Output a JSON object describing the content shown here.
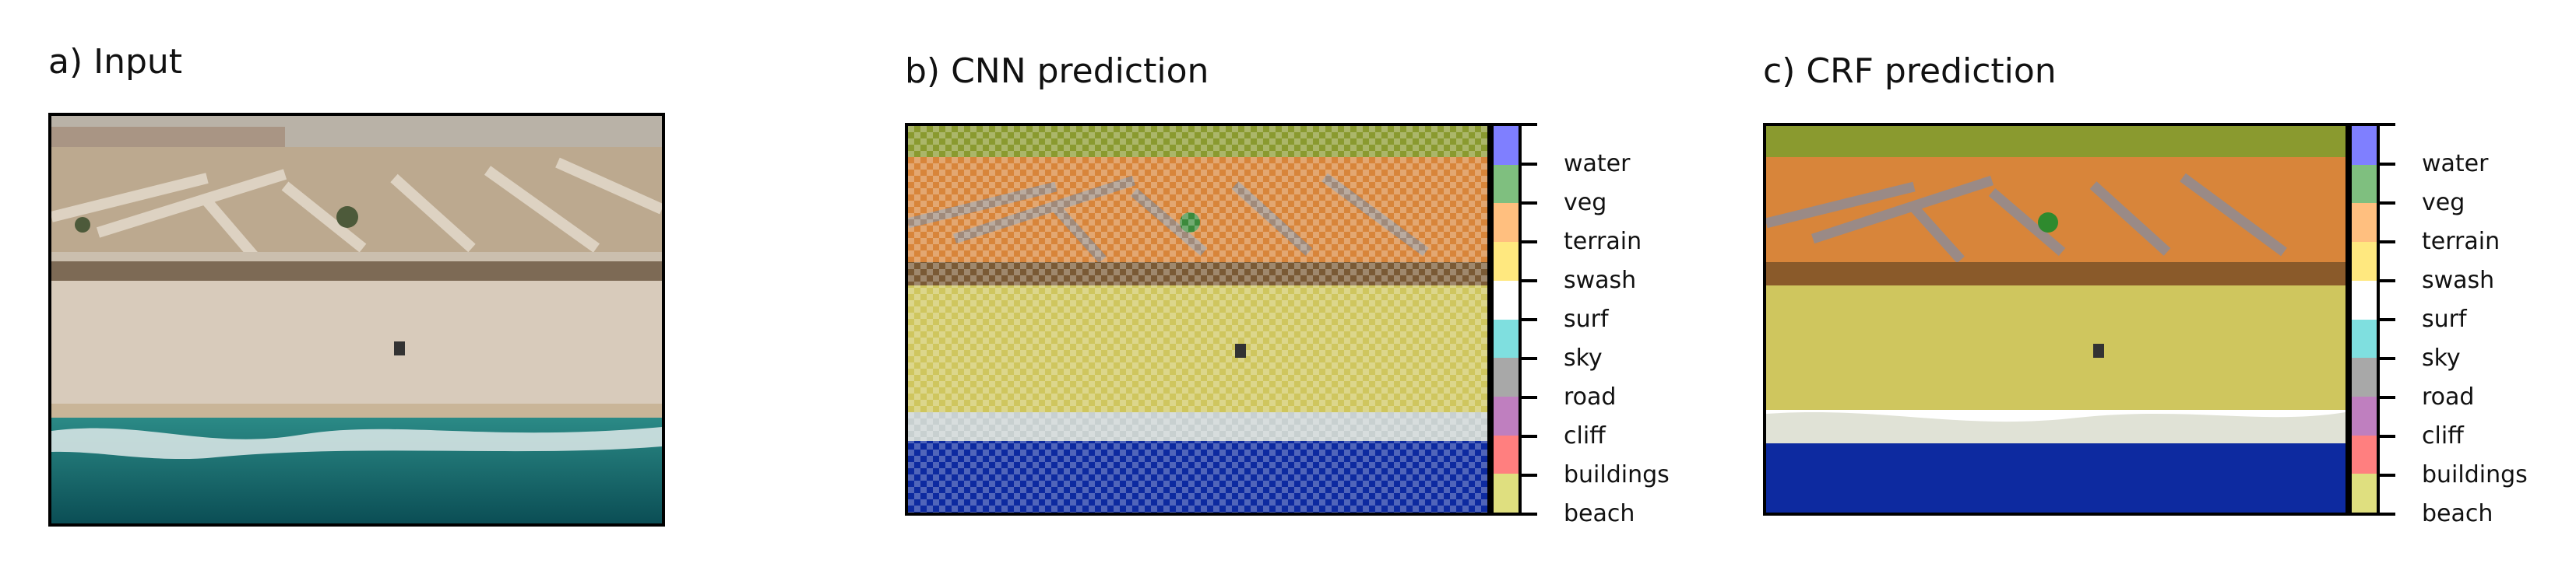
{
  "panels": {
    "input": {
      "title": "a) Input"
    },
    "cnn": {
      "title": "b) CNN prediction"
    },
    "crf": {
      "title": "c) CRF prediction"
    }
  },
  "legend": {
    "classes": [
      {
        "label": "water",
        "color": "#7f7fff"
      },
      {
        "label": "veg",
        "color": "#7fbf7f"
      },
      {
        "label": "terrain",
        "color": "#ffbf7f"
      },
      {
        "label": "swash",
        "color": "#ffe87f"
      },
      {
        "label": "surf",
        "color": "#ffffff"
      },
      {
        "label": "sky",
        "color": "#7fdfdf"
      },
      {
        "label": "road",
        "color": "#a8a8a8"
      },
      {
        "label": "cliff",
        "color": "#bf7fbf"
      },
      {
        "label": "buildings",
        "color": "#ff7f7f"
      },
      {
        "label": "beach",
        "color": "#dfdf7f"
      }
    ]
  },
  "scene_colors": {
    "sand": "#d9cbb9",
    "dunes": "#b9a88f",
    "ocean": "#136b6b",
    "overlay_terrain": "#d8853a",
    "overlay_beach": "#cfc65e",
    "overlay_water": "#0d2aa0",
    "overlay_veg": "#8a9a2f"
  }
}
